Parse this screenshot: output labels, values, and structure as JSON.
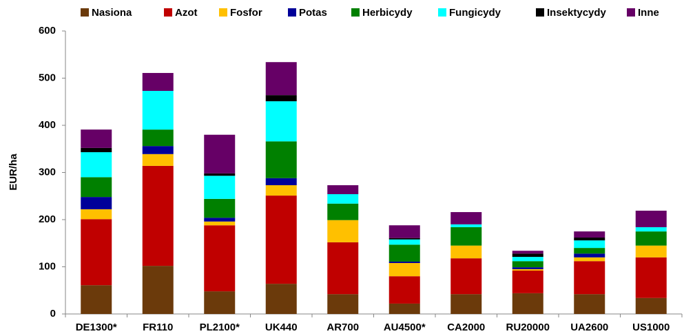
{
  "chart_data": {
    "type": "stacked_bar",
    "ylabel": "EUR/ha",
    "categories": [
      "DE1300*",
      "FR110",
      "PL2100*",
      "UK440",
      "AR700",
      "AU4500*",
      "CA2000",
      "RU20000",
      "UA2600",
      "US1000"
    ],
    "series": [
      {
        "name": "Nasiona",
        "color": "#6b3a0b",
        "values": [
          61,
          102,
          48,
          64,
          42,
          22,
          42,
          44,
          42,
          34
        ]
      },
      {
        "name": "Azot",
        "color": "#c00000",
        "values": [
          140,
          212,
          140,
          187,
          110,
          58,
          76,
          48,
          70,
          86
        ]
      },
      {
        "name": "Fosfor",
        "color": "#ffc000",
        "values": [
          21,
          25,
          8,
          22,
          47,
          28,
          27,
          3,
          8,
          25
        ]
      },
      {
        "name": "Potas",
        "color": "#000099",
        "values": [
          26,
          17,
          8,
          15,
          0,
          3,
          0,
          4,
          8,
          0
        ]
      },
      {
        "name": "Herbicydy",
        "color": "#008000",
        "values": [
          42,
          35,
          40,
          78,
          35,
          36,
          39,
          13,
          12,
          30
        ]
      },
      {
        "name": "Fungicydy",
        "color": "#00ffff",
        "values": [
          53,
          82,
          49,
          85,
          20,
          11,
          6,
          9,
          16,
          9
        ]
      },
      {
        "name": "Insektycydy",
        "color": "#000000",
        "values": [
          9,
          0,
          5,
          13,
          0,
          3,
          0,
          7,
          6,
          0
        ]
      },
      {
        "name": "Inne",
        "color": "#660066",
        "values": [
          39,
          38,
          82,
          70,
          19,
          27,
          26,
          6,
          13,
          35
        ]
      }
    ],
    "ylim": [
      0,
      600
    ],
    "yticks": [
      0,
      100,
      200,
      300,
      400,
      500,
      600
    ],
    "grid": false,
    "legend": "top"
  }
}
